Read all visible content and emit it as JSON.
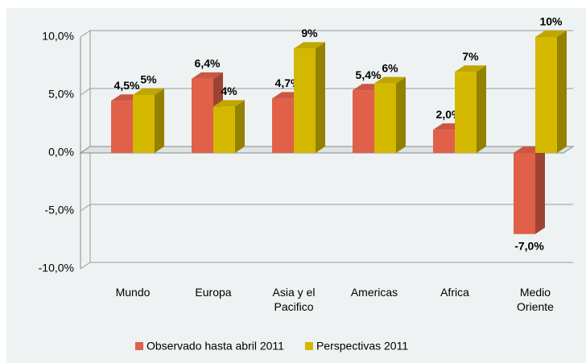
{
  "chart_data": {
    "type": "bar3d",
    "categories": [
      "Mundo",
      "Europa",
      "Asia y el\nPacifico",
      "Americas",
      "Africa",
      "Medio\nOriente"
    ],
    "series": [
      {
        "name": "Observado hasta abril 2011",
        "color": "#e0604a",
        "values": [
          4.5,
          6.4,
          4.7,
          5.4,
          2.0,
          -7.0
        ],
        "value_labels": [
          "4,5%",
          "6,4%",
          "4,7%",
          "5,4%",
          "2,0%",
          "-7,0%"
        ]
      },
      {
        "name": "Perspectivas 2011",
        "color": "#d4b800",
        "values": [
          5,
          4,
          9,
          6,
          7,
          10
        ],
        "value_labels": [
          "5%",
          "4%",
          "9%",
          "6%",
          "7%",
          "10%"
        ]
      }
    ],
    "ylim": [
      -10,
      10
    ],
    "yticks": [
      {
        "value": -10,
        "label": "-10,0%"
      },
      {
        "value": -5,
        "label": "-5,0%"
      },
      {
        "value": 0,
        "label": "0,0%"
      },
      {
        "value": 5,
        "label": "5,0%"
      },
      {
        "value": 10,
        "label": "10,0%"
      }
    ],
    "grid": true,
    "legend": "bottom"
  }
}
